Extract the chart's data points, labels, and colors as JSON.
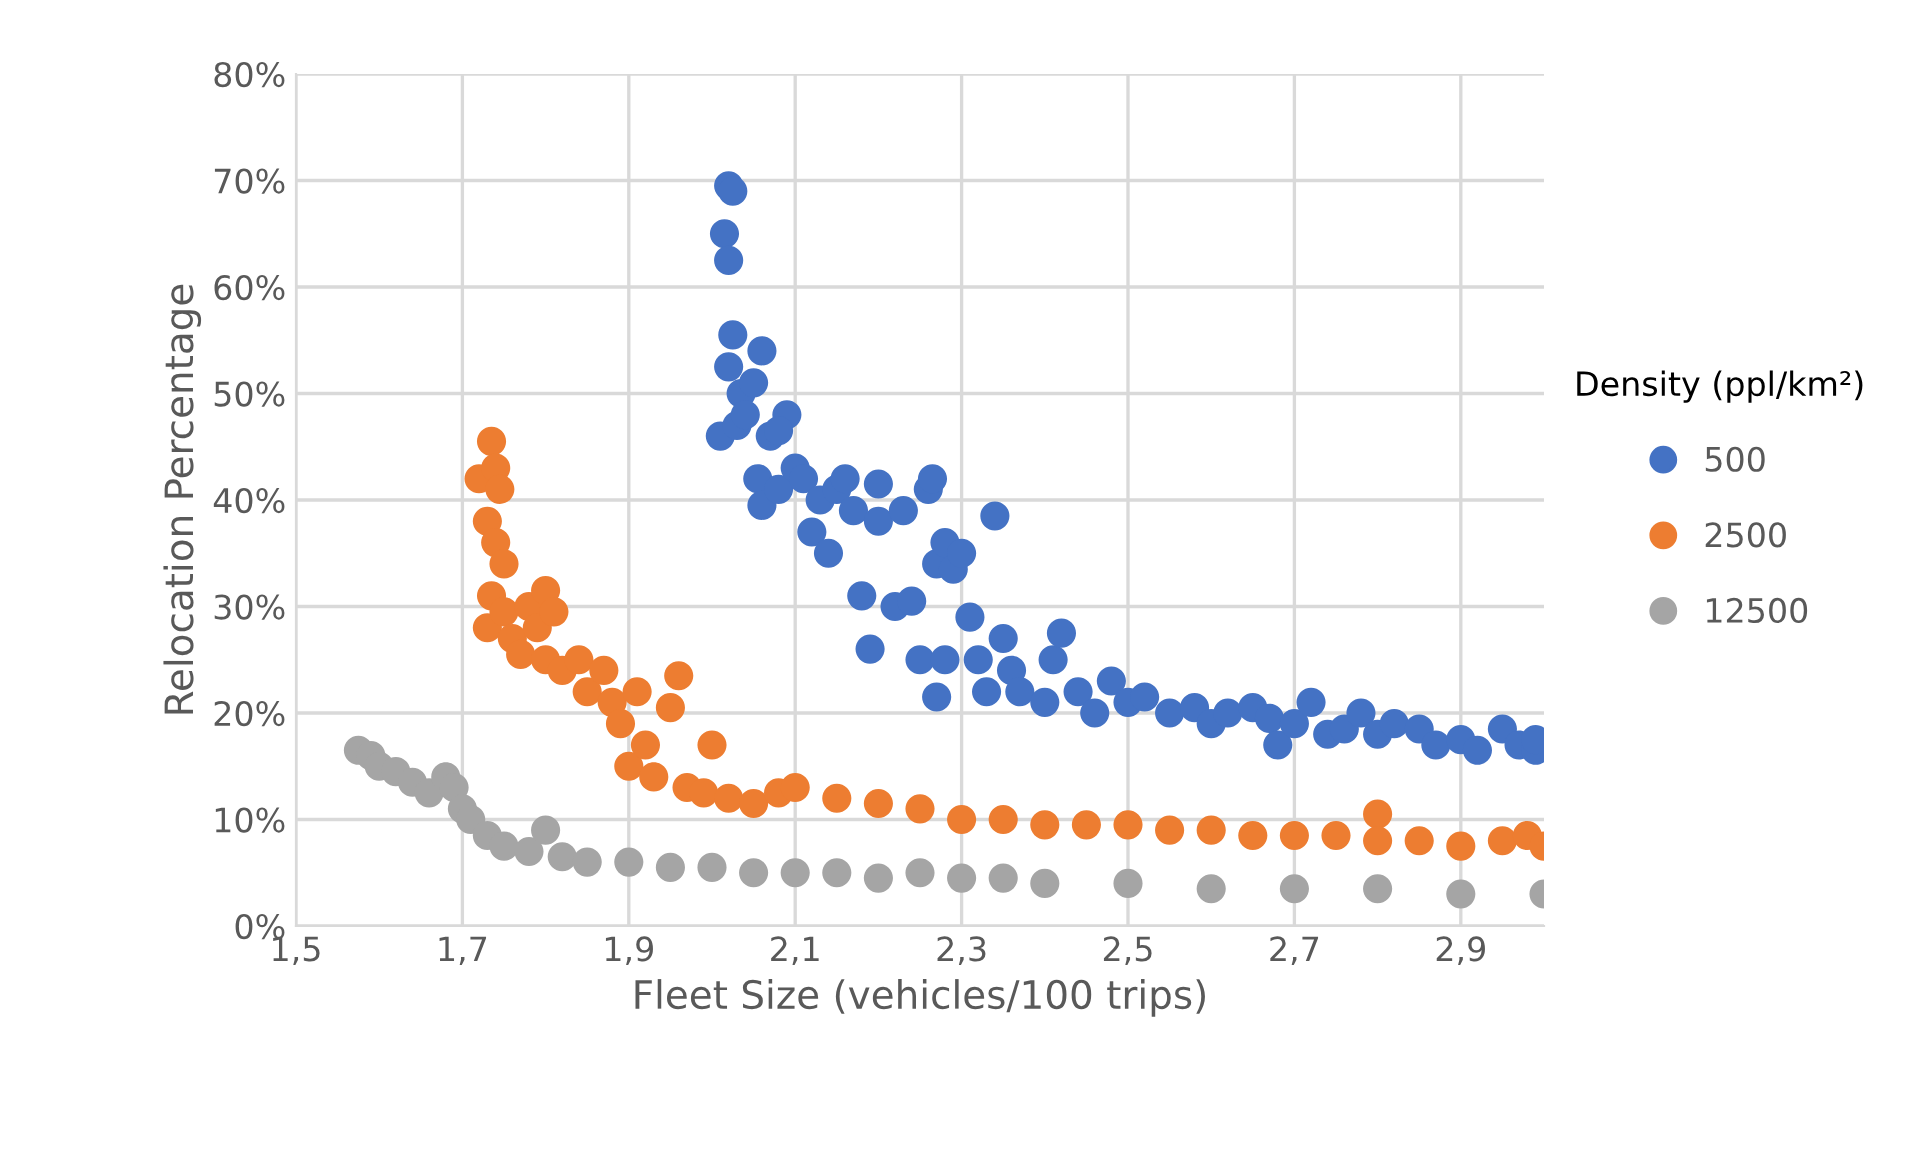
{
  "chart_data": {
    "type": "scatter",
    "xlabel": "Fleet Size (vehicles/100 trips)",
    "ylabel": "Relocation Percentage",
    "legend_title": "Density (ppl/km²)",
    "xlim": [
      1.5,
      3.0
    ],
    "xticks": [
      {
        "value": 1.5,
        "label": "1,5"
      },
      {
        "value": 1.7,
        "label": "1,7"
      },
      {
        "value": 1.9,
        "label": "1,9"
      },
      {
        "value": 2.1,
        "label": "2,1"
      },
      {
        "value": 2.3,
        "label": "2,3"
      },
      {
        "value": 2.5,
        "label": "2,5"
      },
      {
        "value": 2.7,
        "label": "2,7"
      },
      {
        "value": 2.9,
        "label": "2,9"
      }
    ],
    "ylim": [
      0,
      80
    ],
    "yticks": [
      {
        "value": 0,
        "label": "0%"
      },
      {
        "value": 10,
        "label": "10%"
      },
      {
        "value": 20,
        "label": "20%"
      },
      {
        "value": 30,
        "label": "30%"
      },
      {
        "value": 40,
        "label": "40%"
      },
      {
        "value": 50,
        "label": "50%"
      },
      {
        "value": 60,
        "label": "60%"
      },
      {
        "value": 70,
        "label": "70%"
      },
      {
        "value": 80,
        "label": "80%"
      }
    ],
    "grid": true,
    "legend": "right",
    "marker": "circle",
    "series": [
      {
        "name": "500",
        "color": "#4472c4",
        "x": [
          2.02,
          2.025,
          2.015,
          2.02,
          2.025,
          2.02,
          2.035,
          2.01,
          2.03,
          2.04,
          2.05,
          2.06,
          2.07,
          2.055,
          2.06,
          2.08,
          2.09,
          2.08,
          2.1,
          2.11,
          2.12,
          2.13,
          2.14,
          2.15,
          2.16,
          2.17,
          2.18,
          2.19,
          2.2,
          2.2,
          2.22,
          2.23,
          2.24,
          2.25,
          2.26,
          2.265,
          2.27,
          2.27,
          2.28,
          2.28,
          2.29,
          2.3,
          2.31,
          2.32,
          2.33,
          2.34,
          2.35,
          2.36,
          2.37,
          2.4,
          2.41,
          2.42,
          2.44,
          2.46,
          2.48,
          2.5,
          2.52,
          2.55,
          2.58,
          2.6,
          2.62,
          2.65,
          2.67,
          2.68,
          2.7,
          2.72,
          2.74,
          2.76,
          2.78,
          2.8,
          2.82,
          2.85,
          2.87,
          2.9,
          2.92,
          2.95,
          2.97,
          2.99,
          2.99
        ],
        "values": [
          69.5,
          69,
          65,
          62.5,
          55.5,
          52.5,
          50,
          46,
          47,
          48,
          51,
          54,
          46,
          42,
          39.5,
          41,
          48,
          46.5,
          43,
          42,
          37,
          40,
          35,
          41,
          42,
          39,
          31,
          26,
          41.5,
          38,
          30,
          39,
          30.5,
          25,
          41,
          42,
          34,
          21.5,
          36,
          25,
          33.5,
          35,
          29,
          25,
          22,
          38.5,
          27,
          24,
          22,
          21,
          25,
          27.5,
          22,
          20,
          23,
          21,
          21.5,
          20,
          20.5,
          19,
          20,
          20.5,
          19.5,
          17,
          19,
          21,
          18,
          18.5,
          20,
          18,
          19,
          18.5,
          17,
          17.5,
          16.5,
          18.5,
          17,
          16.5,
          17.5
        ]
      },
      {
        "name": "2500",
        "color": "#ed7d31",
        "x": [
          1.72,
          1.73,
          1.735,
          1.74,
          1.745,
          1.73,
          1.74,
          1.75,
          1.735,
          1.73,
          1.75,
          1.76,
          1.77,
          1.78,
          1.79,
          1.8,
          1.81,
          1.8,
          1.82,
          1.84,
          1.85,
          1.87,
          1.88,
          1.89,
          1.9,
          1.91,
          1.92,
          1.93,
          1.95,
          1.96,
          1.97,
          1.99,
          2.0,
          2.02,
          2.05,
          2.08,
          2.1,
          2.15,
          2.2,
          2.25,
          2.3,
          2.35,
          2.4,
          2.45,
          2.5,
          2.55,
          2.6,
          2.65,
          2.7,
          2.75,
          2.8,
          2.8,
          2.85,
          2.9,
          2.95,
          2.98,
          3.0
        ],
        "values": [
          42,
          null,
          45.5,
          43,
          41,
          38,
          36,
          34,
          31,
          28,
          29.5,
          27,
          25.5,
          30,
          28,
          31.5,
          29.5,
          25,
          24,
          25,
          22,
          24,
          21,
          19,
          15,
          22,
          17,
          14,
          20.5,
          23.5,
          13,
          12.5,
          17,
          12,
          11.5,
          12.5,
          13,
          12,
          11.5,
          11,
          10,
          10,
          9.5,
          9.5,
          9.5,
          9,
          9,
          8.5,
          8.5,
          8.5,
          10.5,
          8,
          8,
          7.5,
          8,
          8.5,
          7.5
        ]
      },
      {
        "name": "12500",
        "color": "#a5a5a5",
        "x": [
          1.575,
          1.59,
          1.6,
          1.62,
          1.64,
          1.66,
          1.68,
          1.69,
          1.7,
          1.71,
          1.73,
          1.75,
          1.78,
          1.8,
          1.82,
          1.85,
          1.9,
          1.95,
          2.0,
          2.05,
          2.1,
          2.15,
          2.2,
          2.25,
          2.3,
          2.35,
          2.4,
          2.5,
          2.6,
          2.7,
          2.8,
          2.9,
          3.0
        ],
        "values": [
          16.5,
          16,
          15,
          14.5,
          13.5,
          12.5,
          14,
          13,
          11,
          10,
          8.5,
          7.5,
          7,
          9,
          6.5,
          6,
          6,
          5.5,
          5.5,
          5,
          5,
          5,
          4.5,
          5,
          4.5,
          4.5,
          4,
          4,
          3.5,
          3.5,
          3.5,
          3,
          3
        ]
      }
    ]
  }
}
